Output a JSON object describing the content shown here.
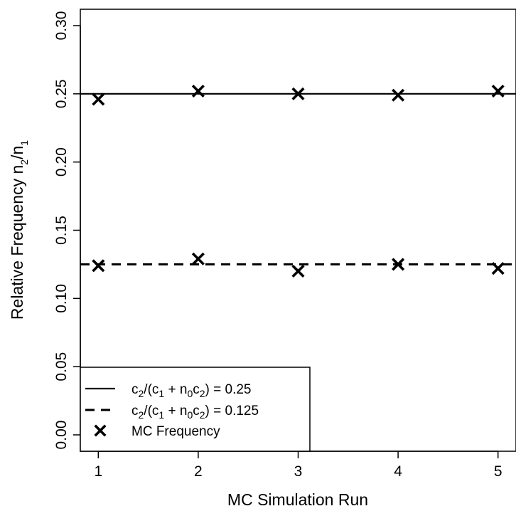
{
  "chart_data": {
    "type": "scatter",
    "xlabel": "MC Simulation Run",
    "ylabel": {
      "main": "Relative Frequency ",
      "n": "n",
      "sub2": "2",
      "slash": "/",
      "sub1": "1"
    },
    "xlim": [
      0.82,
      5.18
    ],
    "ylim": [
      -0.012,
      0.312
    ],
    "x_ticks": [
      "1",
      "2",
      "3",
      "4",
      "5"
    ],
    "y_ticks": [
      "0.00",
      "0.05",
      "0.10",
      "0.15",
      "0.20",
      "0.25",
      "0.30"
    ],
    "reference_lines": [
      {
        "y": 0.25,
        "style": "solid"
      },
      {
        "y": 0.125,
        "style": "dashed"
      }
    ],
    "series": [
      {
        "name": "MC Frequency",
        "marker": "x",
        "points": [
          {
            "x": 1,
            "y": 0.246
          },
          {
            "x": 2,
            "y": 0.252
          },
          {
            "x": 3,
            "y": 0.25
          },
          {
            "x": 4,
            "y": 0.249
          },
          {
            "x": 5,
            "y": 0.252
          },
          {
            "x": 1,
            "y": 0.124
          },
          {
            "x": 2,
            "y": 0.129
          },
          {
            "x": 3,
            "y": 0.12
          },
          {
            "x": 4,
            "y": 0.125
          },
          {
            "x": 5,
            "y": 0.122
          }
        ]
      }
    ],
    "legend": {
      "placement": "bottom-left",
      "entries": [
        {
          "style": "solid",
          "formula": {
            "c": "c",
            "s2": "2",
            "open": "/(c",
            "s1": "1",
            "plus": " + n",
            "s0": "0",
            "c2": "c",
            "s2b": "2",
            "close": ") = 0.25"
          }
        },
        {
          "style": "dashed",
          "formula": {
            "c": "c",
            "s2": "2",
            "open": "/(c",
            "s1": "1",
            "plus": " + n",
            "s0": "0",
            "c2": "c",
            "s2b": "2",
            "close": ") = 0.125"
          }
        },
        {
          "style": "x",
          "label": "MC Frequency"
        }
      ]
    }
  }
}
